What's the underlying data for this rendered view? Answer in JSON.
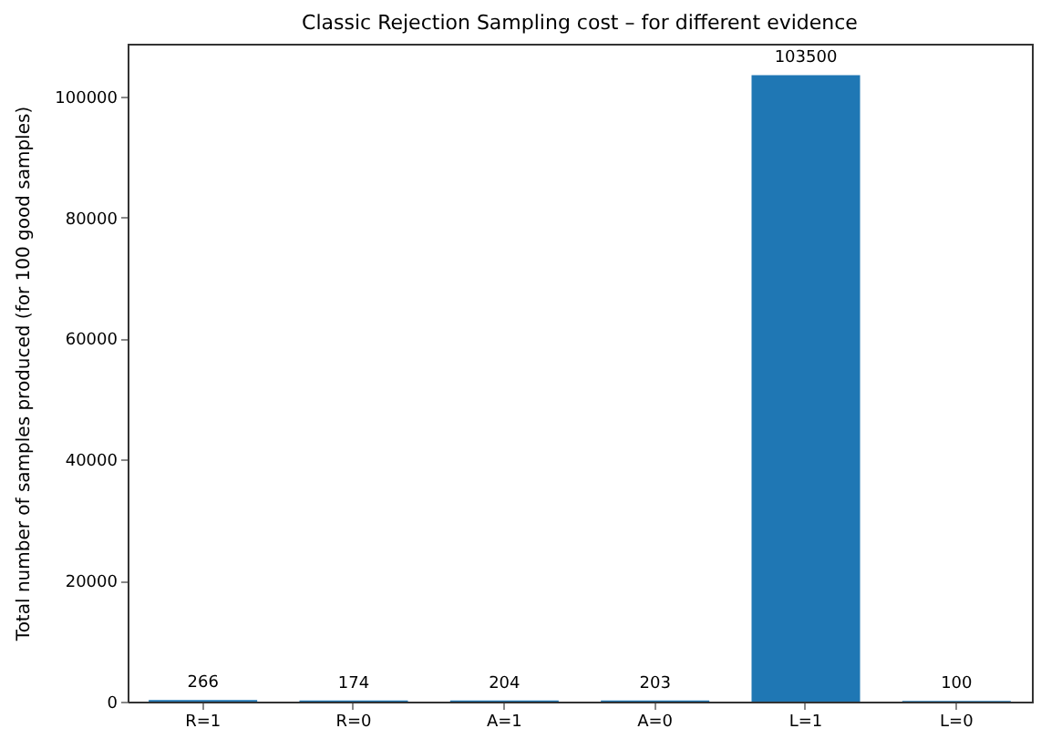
{
  "chart_data": {
    "type": "bar",
    "title": "Classic Rejection Sampling cost – for different evidence",
    "ylabel": "Total number of samples produced (for 100 good samples)",
    "categories": [
      "R=1",
      "R=0",
      "A=1",
      "A=0",
      "L=1",
      "L=0"
    ],
    "values": [
      266,
      174,
      204,
      203,
      103500,
      100
    ],
    "color": "#1f77b4",
    "ylim": [
      0,
      108675
    ],
    "yticks": [
      0,
      20000,
      40000,
      60000,
      80000,
      100000
    ],
    "grid": false,
    "data_labels": true
  }
}
